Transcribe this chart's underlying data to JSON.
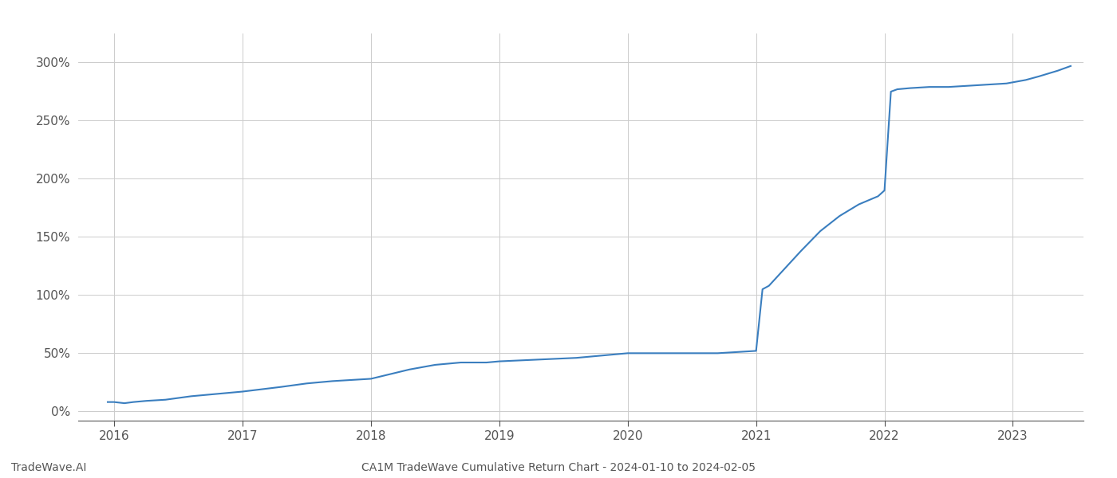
{
  "title": "CA1M TradeWave Cumulative Return Chart - 2024-01-10 to 2024-02-05",
  "watermark": "TradeWave.AI",
  "line_color": "#3a7ebf",
  "line_width": 1.5,
  "background_color": "#ffffff",
  "grid_color": "#cccccc",
  "x_years": [
    2016,
    2017,
    2018,
    2019,
    2020,
    2021,
    2022,
    2023
  ],
  "y_ticks": [
    0,
    50,
    100,
    150,
    200,
    250,
    300
  ],
  "xlim_start": 2015.72,
  "xlim_end": 2023.55,
  "ylim_bottom": -8,
  "ylim_top": 325,
  "data_x": [
    2015.95,
    2016.0,
    2016.08,
    2016.15,
    2016.25,
    2016.4,
    2016.6,
    2016.8,
    2017.0,
    2017.15,
    2017.3,
    2017.5,
    2017.7,
    2017.85,
    2018.0,
    2018.15,
    2018.3,
    2018.5,
    2018.7,
    2018.9,
    2019.0,
    2019.2,
    2019.4,
    2019.6,
    2019.8,
    2020.0,
    2020.1,
    2020.3,
    2020.5,
    2020.7,
    2020.85,
    2021.0,
    2021.05,
    2021.1,
    2021.2,
    2021.35,
    2021.5,
    2021.65,
    2021.8,
    2021.95,
    2022.0,
    2022.05,
    2022.1,
    2022.2,
    2022.35,
    2022.5,
    2022.65,
    2022.8,
    2022.95,
    2023.0,
    2023.1,
    2023.2,
    2023.35,
    2023.45
  ],
  "data_y": [
    8,
    8,
    7,
    8,
    9,
    10,
    13,
    15,
    17,
    19,
    21,
    24,
    26,
    27,
    28,
    32,
    36,
    40,
    42,
    42,
    43,
    44,
    45,
    46,
    48,
    50,
    50,
    50,
    50,
    50,
    51,
    52,
    105,
    108,
    120,
    138,
    155,
    168,
    178,
    185,
    190,
    275,
    277,
    278,
    279,
    279,
    280,
    281,
    282,
    283,
    285,
    288,
    293,
    297
  ]
}
